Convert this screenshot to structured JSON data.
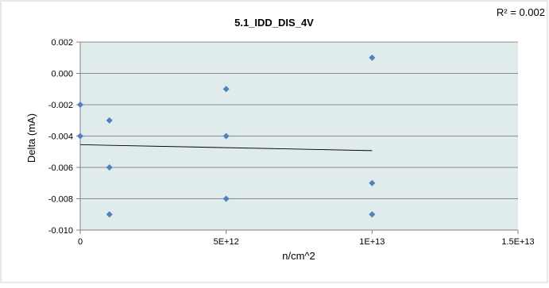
{
  "chart_data": {
    "type": "scatter",
    "title": "5.1_IDD_DIS_4V",
    "xlabel": "n/cm^2",
    "ylabel": "Delta (mA)",
    "r_squared_label": "R² = 0.002",
    "xlim": [
      0,
      15000000000000
    ],
    "ylim": [
      -0.01,
      0.002
    ],
    "x_ticks": [
      0,
      5000000000000,
      10000000000000,
      15000000000000
    ],
    "x_tick_labels": [
      "0",
      "5E+12",
      "1E+13",
      "1.5E+13"
    ],
    "y_ticks": [
      0.002,
      0.0,
      -0.002,
      -0.004,
      -0.006,
      -0.008,
      -0.01
    ],
    "y_tick_labels": [
      "0.002",
      "0.000",
      "-0.002",
      "-0.004",
      "-0.006",
      "-0.008",
      "-0.010"
    ],
    "grid": true,
    "colors": {
      "plot_bg": "#e0ebeb",
      "marker": "#4f81bd",
      "gridline": "#8c8c8c",
      "trendline": "#000000"
    },
    "series": [
      {
        "marker": "diamond",
        "points": [
          [
            0,
            -0.002
          ],
          [
            0,
            -0.004
          ],
          [
            1000000000000,
            -0.003
          ],
          [
            1000000000000,
            -0.006
          ],
          [
            1000000000000,
            -0.009
          ],
          [
            5000000000000,
            -0.001
          ],
          [
            5000000000000,
            -0.004
          ],
          [
            5000000000000,
            -0.008
          ],
          [
            10000000000000,
            0.001
          ],
          [
            10000000000000,
            -0.007
          ],
          [
            10000000000000,
            -0.009
          ]
        ]
      }
    ],
    "trendline": {
      "type": "linear",
      "x": [
        0,
        10000000000000
      ],
      "y": [
        -0.00455,
        -0.00493
      ]
    }
  }
}
